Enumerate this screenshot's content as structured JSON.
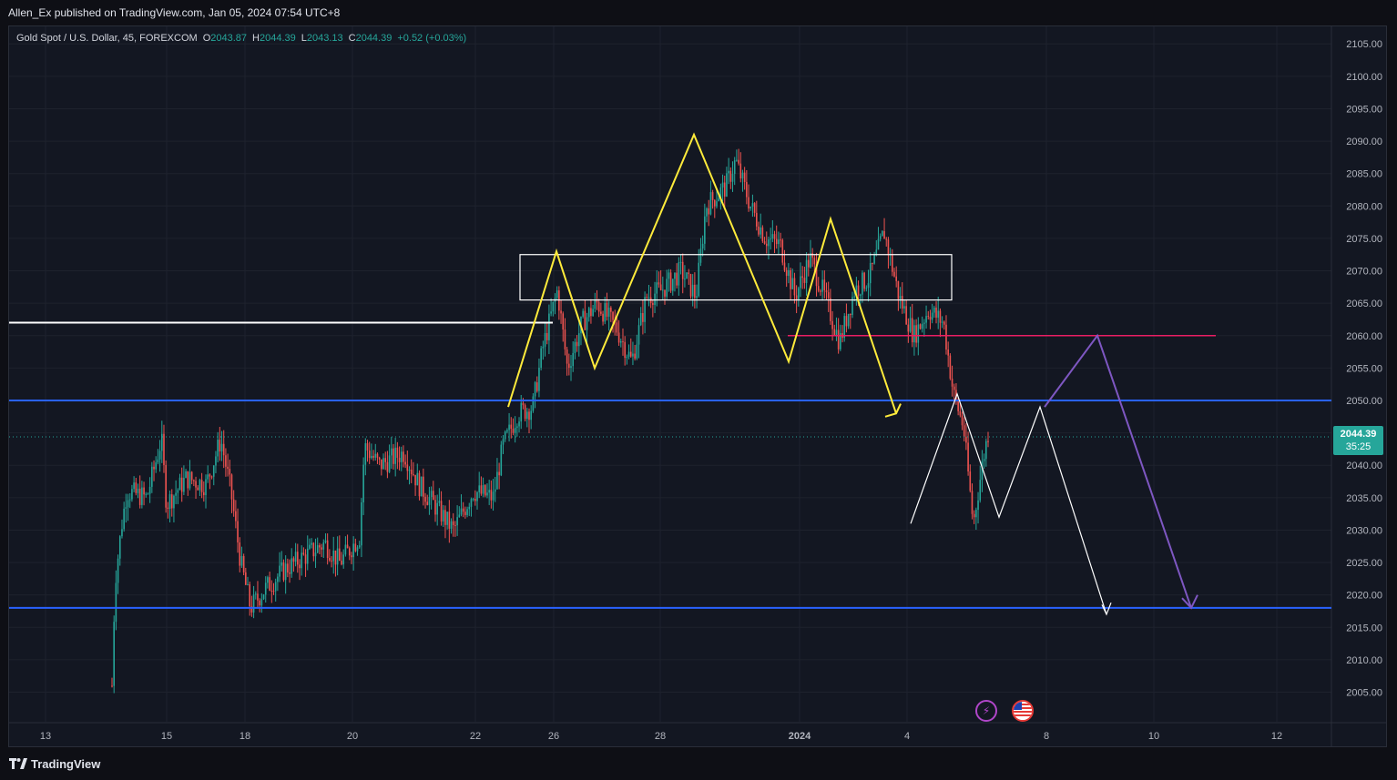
{
  "header": {
    "published": "Allen_Ex published on TradingView.com, Jan 05, 2024 07:54 UTC+8"
  },
  "legend": {
    "symbol": "Gold Spot / U.S. Dollar, 45, FOREXCOM",
    "open_label": "O",
    "open": "2043.87",
    "high_label": "H",
    "high": "2044.39",
    "low_label": "L",
    "low": "2043.13",
    "close_label": "C",
    "close": "2044.39",
    "change": "+0.52 (+0.03%)"
  },
  "price_tag": {
    "price": "2044.39",
    "countdown": "35:25"
  },
  "footer": {
    "brand": "TradingView"
  },
  "icons": {
    "lightning": "lightning-icon",
    "flag": "us-flag-icon"
  },
  "colors": {
    "background": "#131722",
    "up": "#26a69a",
    "down": "#ef5350",
    "yellow": "#ffeb3b",
    "blue": "#2962ff",
    "purple": "#7e57c2",
    "magenta": "#e91e63",
    "white": "#ffffff"
  },
  "chart_data": {
    "type": "candlestick",
    "symbol": "XAUUSD",
    "timeframe": "45",
    "y_axis": {
      "side": "right",
      "ticks": [
        "2105.00",
        "2100.00",
        "2095.00",
        "2090.00",
        "2085.00",
        "2080.00",
        "2075.00",
        "2070.00",
        "2065.00",
        "2060.00",
        "2055.00",
        "2050.00",
        "2045.00",
        "2040.00",
        "2035.00",
        "2030.00",
        "2025.00",
        "2020.00",
        "2015.00",
        "2010.00",
        "2005.00"
      ],
      "ylim": [
        2001,
        2107
      ]
    },
    "x_axis": {
      "ticks": [
        {
          "label": "13",
          "bold": false
        },
        {
          "label": "15",
          "bold": false
        },
        {
          "label": "18",
          "bold": false
        },
        {
          "label": "20",
          "bold": false
        },
        {
          "label": "22",
          "bold": false
        },
        {
          "label": "26",
          "bold": false
        },
        {
          "label": "28",
          "bold": false
        },
        {
          "label": "2024",
          "bold": true
        },
        {
          "label": "4",
          "bold": false
        },
        {
          "label": "8",
          "bold": false
        },
        {
          "label": "10",
          "bold": false
        },
        {
          "label": "12",
          "bold": false
        }
      ]
    },
    "price_path": [
      [
        0.115,
        2006
      ],
      [
        0.118,
        2022
      ],
      [
        0.125,
        2031
      ],
      [
        0.13,
        2036
      ],
      [
        0.15,
        2035
      ],
      [
        0.165,
        2044
      ],
      [
        0.17,
        2034
      ],
      [
        0.19,
        2038
      ],
      [
        0.21,
        2037
      ],
      [
        0.225,
        2044
      ],
      [
        0.235,
        2036
      ],
      [
        0.245,
        2025
      ],
      [
        0.255,
        2018
      ],
      [
        0.27,
        2021
      ],
      [
        0.29,
        2024
      ],
      [
        0.31,
        2026
      ],
      [
        0.33,
        2028
      ],
      [
        0.345,
        2025
      ],
      [
        0.365,
        2029
      ],
      [
        0.37,
        2043
      ],
      [
        0.385,
        2040
      ],
      [
        0.41,
        2042
      ],
      [
        0.425,
        2037
      ],
      [
        0.445,
        2033
      ],
      [
        0.46,
        2030
      ],
      [
        0.48,
        2036
      ],
      [
        0.5,
        2035
      ],
      [
        0.51,
        2043
      ],
      [
        0.525,
        2048
      ],
      [
        0.54,
        2049
      ],
      [
        0.55,
        2058
      ],
      [
        0.565,
        2067
      ],
      [
        0.575,
        2055
      ],
      [
        0.59,
        2062
      ],
      [
        0.605,
        2065
      ],
      [
        0.625,
        2061
      ],
      [
        0.64,
        2056
      ],
      [
        0.655,
        2066
      ],
      [
        0.67,
        2067
      ],
      [
        0.69,
        2070
      ],
      [
        0.705,
        2066
      ],
      [
        0.715,
        2080
      ],
      [
        0.735,
        2083
      ],
      [
        0.745,
        2087
      ],
      [
        0.76,
        2080
      ],
      [
        0.775,
        2075
      ],
      [
        0.79,
        2074
      ],
      [
        0.805,
        2066
      ],
      [
        0.82,
        2072
      ],
      [
        0.835,
        2066
      ],
      [
        0.85,
        2059
      ],
      [
        0.865,
        2067
      ],
      [
        0.88,
        2069
      ],
      [
        0.895,
        2076
      ],
      [
        0.91,
        2066
      ],
      [
        0.925,
        2060
      ],
      [
        0.94,
        2064
      ],
      [
        0.955,
        2062
      ],
      [
        0.965,
        2051
      ],
      [
        0.975,
        2046
      ],
      [
        0.985,
        2031
      ],
      [
        0.995,
        2041
      ],
      [
        1.0,
        2045
      ]
    ],
    "annotations": {
      "last_price": 2044.39,
      "horizontal_lines": [
        {
          "y": 2050,
          "color": "blue"
        },
        {
          "y": 2018,
          "color": "blue"
        },
        {
          "y": 2062,
          "color": "white"
        },
        {
          "y": 2060,
          "color": "magenta"
        }
      ],
      "zone": {
        "y_range": [
          2065.5,
          2072.5
        ]
      },
      "patterns": [
        "yellow zigzag",
        "white projection zigzag",
        "purple projection arrow"
      ]
    }
  }
}
